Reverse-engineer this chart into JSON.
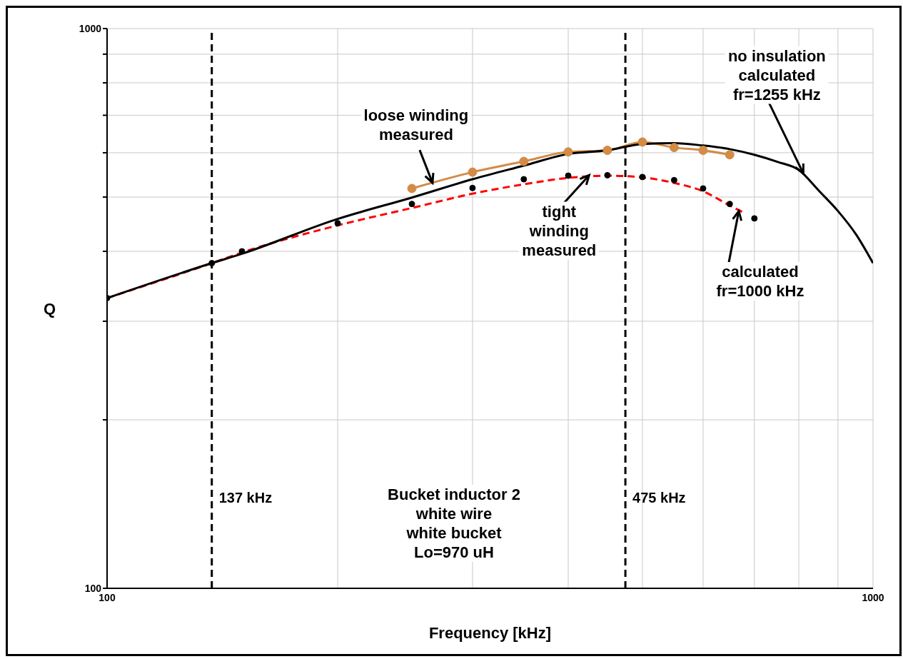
{
  "chart_data": {
    "type": "line",
    "xlabel": "Frequency [kHz]",
    "ylabel": "Q",
    "log": "xy",
    "grid": true,
    "xlim": [
      100,
      1000
    ],
    "ylim": [
      100,
      1000
    ],
    "xticks": [
      100,
      {
        "value": 200,
        "label": null
      },
      {
        "value": 300,
        "label": null
      },
      {
        "value": 400,
        "label": null
      },
      {
        "value": 500,
        "label": null
      },
      {
        "value": 600,
        "label": null
      },
      {
        "value": 700,
        "label": null
      },
      {
        "value": 800,
        "label": null
      },
      {
        "value": 900,
        "label": null
      },
      1000
    ],
    "yticks": [
      100,
      {
        "value": 200,
        "label": null
      },
      {
        "value": 300,
        "label": null
      },
      {
        "value": 400,
        "label": null
      },
      {
        "value": 500,
        "label": null
      },
      {
        "value": 600,
        "label": null
      },
      {
        "value": 700,
        "label": null
      },
      {
        "value": 800,
        "label": null
      },
      {
        "value": 900,
        "label": null
      },
      1000
    ],
    "series": [
      {
        "color": "#ff0000",
        "marker": "none",
        "line_style": "dashed",
        "x": [
          100,
          137,
          150,
          200,
          250,
          300,
          350,
          400,
          450,
          500,
          550,
          600,
          650,
          680
        ],
        "values": [
          330,
          381,
          398,
          445,
          478,
          507,
          527,
          541,
          546,
          542,
          530,
          512,
          483,
          468
        ]
      },
      {
        "type": "scatter",
        "color": "#000000",
        "marker": "circle",
        "x": [
          100,
          137,
          150,
          200,
          250,
          300,
          350,
          400,
          450,
          500,
          550,
          600,
          650,
          700
        ],
        "values": [
          330,
          381,
          400,
          449,
          486,
          519,
          538,
          546,
          547,
          543,
          536,
          518,
          486,
          458
        ]
      },
      {
        "color": "#d38b46",
        "marker": "circle",
        "line_style": "solid",
        "x": [
          250,
          300,
          350,
          400,
          450,
          500,
          550,
          600,
          650
        ],
        "values": [
          518,
          554,
          579,
          602,
          606,
          627,
          613,
          606,
          595
        ]
      },
      {
        "color": "#000000",
        "marker": "none",
        "line_style": "solid",
        "x": [
          100,
          137,
          150,
          200,
          250,
          300,
          350,
          400,
          450,
          500,
          550,
          600,
          650,
          700,
          750,
          800,
          850,
          900,
          950,
          1000
        ],
        "values": [
          330,
          381,
          396,
          457,
          499,
          538,
          569,
          597,
          606,
          622,
          624,
          618,
          609,
          595,
          578,
          559,
          513,
          472,
          429,
          381
        ]
      }
    ],
    "ref_lines": [
      {
        "axis": "x",
        "value": 137,
        "label": "137 kHz",
        "color": "#000000",
        "line_style": "dashed"
      },
      {
        "axis": "x",
        "value": 475,
        "label": "475 kHz",
        "color": "#000000",
        "line_style": "dashed"
      }
    ],
    "annotations": [
      {
        "text": "loose winding\nmeasured",
        "x": 266,
        "y": 530
      },
      {
        "text": "tight\nwinding\nmeasured",
        "x": 426,
        "y": 547
      },
      {
        "text": "no insulation\ncalculated\nfr=1255 kHz",
        "x": 811,
        "y": 551
      },
      {
        "text": "calculated\nfr=1000 kHz",
        "x": 668,
        "y": 472
      },
      "Bucket inductor 2\nwhite wire\nwhite bucket\nLo=970 uH"
    ]
  }
}
